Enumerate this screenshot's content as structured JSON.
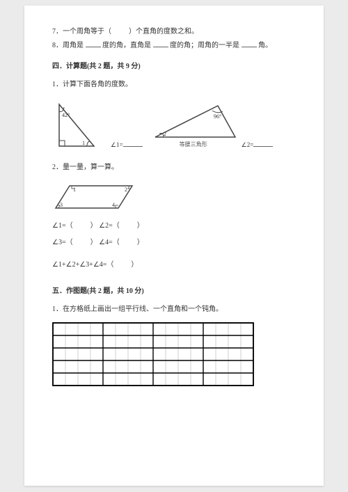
{
  "q7": {
    "prefix": "7．一个周角等于（",
    "suffix": "）个直角的度数之和。"
  },
  "q8": {
    "t1": "8．周角是",
    "t2": "度的角，直角是",
    "t3": "度的角；周角的一半是",
    "t4": "角。"
  },
  "section4": {
    "title": "四．计算题(共 2 题，共 9 分)"
  },
  "s4q1": {
    "text": "1．计算下面各角的度数。",
    "angle1_label": "∠1=",
    "angle2_label": "∠2=",
    "tri1_angle": "42°",
    "tri2_angle": "96°",
    "tri2_anglemark": "2",
    "tri1_anglemark": "1",
    "tri2_caption": "等腰三角形"
  },
  "s4q2": {
    "text": "2．量一量，算一算。",
    "labels": {
      "l1": "1",
      "l2": "2",
      "l3": "3",
      "l4": "4"
    },
    "eq1a": "∠1=（",
    "eq1b": "）  ∠2=（",
    "eq1c": "）",
    "eq2a": "∠3=（",
    "eq2b": "）  ∠4=（",
    "eq2c": "）",
    "eq3a": "∠1+∠2+∠3+∠4=（",
    "eq3b": "）"
  },
  "section5": {
    "title": "五．作图题(共 2 题，共 10 分)"
  },
  "s5q1": {
    "text": "1．在方格纸上画出一组平行线、一个直角和一个钝角。"
  },
  "grid": {
    "cols": 16,
    "rows": 5,
    "cell": 18,
    "outer_stroke": "#000000",
    "inner_stroke": "#bbbbbb",
    "bold_hstep": 1,
    "bold_vstep": 4
  },
  "colors": {
    "page_bg": "#ffffff",
    "outer_bg": "#ebebeb",
    "text": "#333333",
    "figure_stroke": "#444444"
  }
}
